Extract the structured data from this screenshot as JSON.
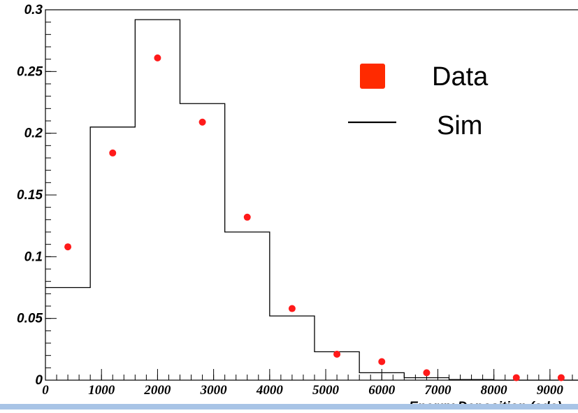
{
  "chart_data": {
    "type": "histogram",
    "xlabel": "Energy Deposition (adc)",
    "ylabel": "",
    "title": "",
    "xlim": [
      0,
      9600
    ],
    "ylim": [
      0,
      0.3
    ],
    "xticks": [
      "0",
      "1000",
      "2000",
      "3000",
      "4000",
      "5000",
      "6000",
      "7000",
      "8000",
      "9000"
    ],
    "yticks": [
      "0",
      "0.05",
      "0.1",
      "0.15",
      "0.2",
      "0.25",
      "0.3"
    ],
    "grid": false,
    "legend_position": "top-right",
    "series": [
      {
        "name": "Sim",
        "style": "step",
        "color": "#000000",
        "bins": [
          {
            "x0": 0,
            "x1": 800,
            "y": 0.075
          },
          {
            "x0": 800,
            "x1": 1600,
            "y": 0.205
          },
          {
            "x0": 1600,
            "x1": 2400,
            "y": 0.292
          },
          {
            "x0": 2400,
            "x1": 3200,
            "y": 0.224
          },
          {
            "x0": 3200,
            "x1": 4000,
            "y": 0.12
          },
          {
            "x0": 4000,
            "x1": 4800,
            "y": 0.052
          },
          {
            "x0": 4800,
            "x1": 5600,
            "y": 0.023
          },
          {
            "x0": 5600,
            "x1": 6400,
            "y": 0.006
          },
          {
            "x0": 6400,
            "x1": 7200,
            "y": 0.002
          },
          {
            "x0": 7200,
            "x1": 8000,
            "y": 0.0005
          },
          {
            "x0": 8000,
            "x1": 8800,
            "y": 0.0
          },
          {
            "x0": 8800,
            "x1": 9600,
            "y": 0.0
          }
        ]
      },
      {
        "name": "Data",
        "style": "points",
        "color": "#ff1a1a",
        "x": [
          400,
          1200,
          2000,
          2800,
          3600,
          4400,
          5200,
          6000,
          6800,
          8400,
          9200
        ],
        "y": [
          0.108,
          0.184,
          0.261,
          0.209,
          0.132,
          0.058,
          0.021,
          0.015,
          0.006,
          0.002,
          0.002
        ]
      }
    ],
    "legend": [
      {
        "label": "Data",
        "marker": "square",
        "color": "#ff2a00"
      },
      {
        "label": "Sim",
        "marker": "line",
        "color": "#000000"
      }
    ]
  },
  "bottom_band_color": "#a8c4e6"
}
